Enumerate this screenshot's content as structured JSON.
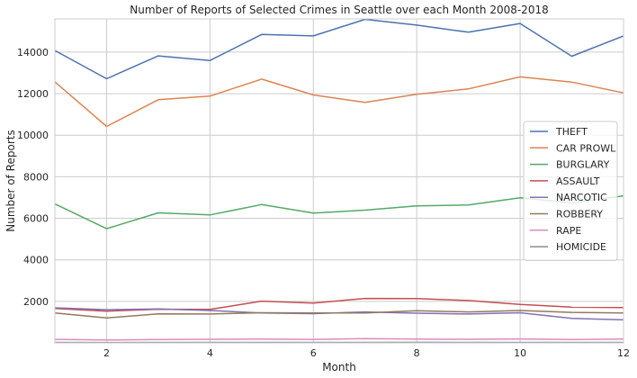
{
  "chart_data": {
    "type": "line",
    "title": "Number of Reports of Selected Crimes in Seattle over each Month 2008-2018",
    "xlabel": "Month",
    "ylabel": "Number of Reports",
    "x": [
      1,
      2,
      3,
      4,
      5,
      6,
      7,
      8,
      9,
      10,
      11,
      12
    ],
    "xlim": [
      1,
      12
    ],
    "ylim": [
      0,
      15600
    ],
    "xticks": [
      2,
      4,
      6,
      8,
      10,
      12
    ],
    "yticks": [
      2000,
      4000,
      6000,
      8000,
      10000,
      12000,
      14000
    ],
    "grid": true,
    "legend_position": "center-right",
    "series": [
      {
        "name": "THEFT",
        "color": "#4c72b0",
        "values": [
          14080,
          12720,
          13820,
          13600,
          14850,
          14780,
          15580,
          15300,
          14960,
          15380,
          13800,
          14780
        ]
      },
      {
        "name": "CAR PROWL",
        "color": "#dd8452",
        "values": [
          12570,
          10420,
          11710,
          11880,
          12700,
          11940,
          11580,
          11970,
          12230,
          12810,
          12560,
          12040
        ]
      },
      {
        "name": "BURGLARY",
        "color": "#55a868",
        "values": [
          6690,
          5500,
          6260,
          6160,
          6660,
          6250,
          6390,
          6600,
          6640,
          6990,
          6740,
          7080
        ]
      },
      {
        "name": "ASSAULT",
        "color": "#c44e52",
        "values": [
          1660,
          1530,
          1620,
          1610,
          2010,
          1920,
          2140,
          2130,
          2040,
          1850,
          1720,
          1700
        ]
      },
      {
        "name": "NARCOTIC",
        "color": "#8172b3",
        "values": [
          1690,
          1600,
          1640,
          1560,
          1440,
          1410,
          1490,
          1430,
          1390,
          1450,
          1180,
          1110
        ]
      },
      {
        "name": "ROBBERY",
        "color": "#937860",
        "values": [
          1440,
          1200,
          1400,
          1390,
          1450,
          1440,
          1440,
          1550,
          1490,
          1560,
          1470,
          1440
        ]
      },
      {
        "name": "RAPE",
        "color": "#da8bc3",
        "values": [
          170,
          140,
          160,
          175,
          180,
          170,
          210,
          185,
          175,
          190,
          165,
          180
        ]
      },
      {
        "name": "HOMICIDE",
        "color": "#8c8c8c",
        "values": [
          20,
          18,
          20,
          22,
          22,
          21,
          23,
          24,
          22,
          20,
          21,
          22
        ]
      }
    ]
  }
}
